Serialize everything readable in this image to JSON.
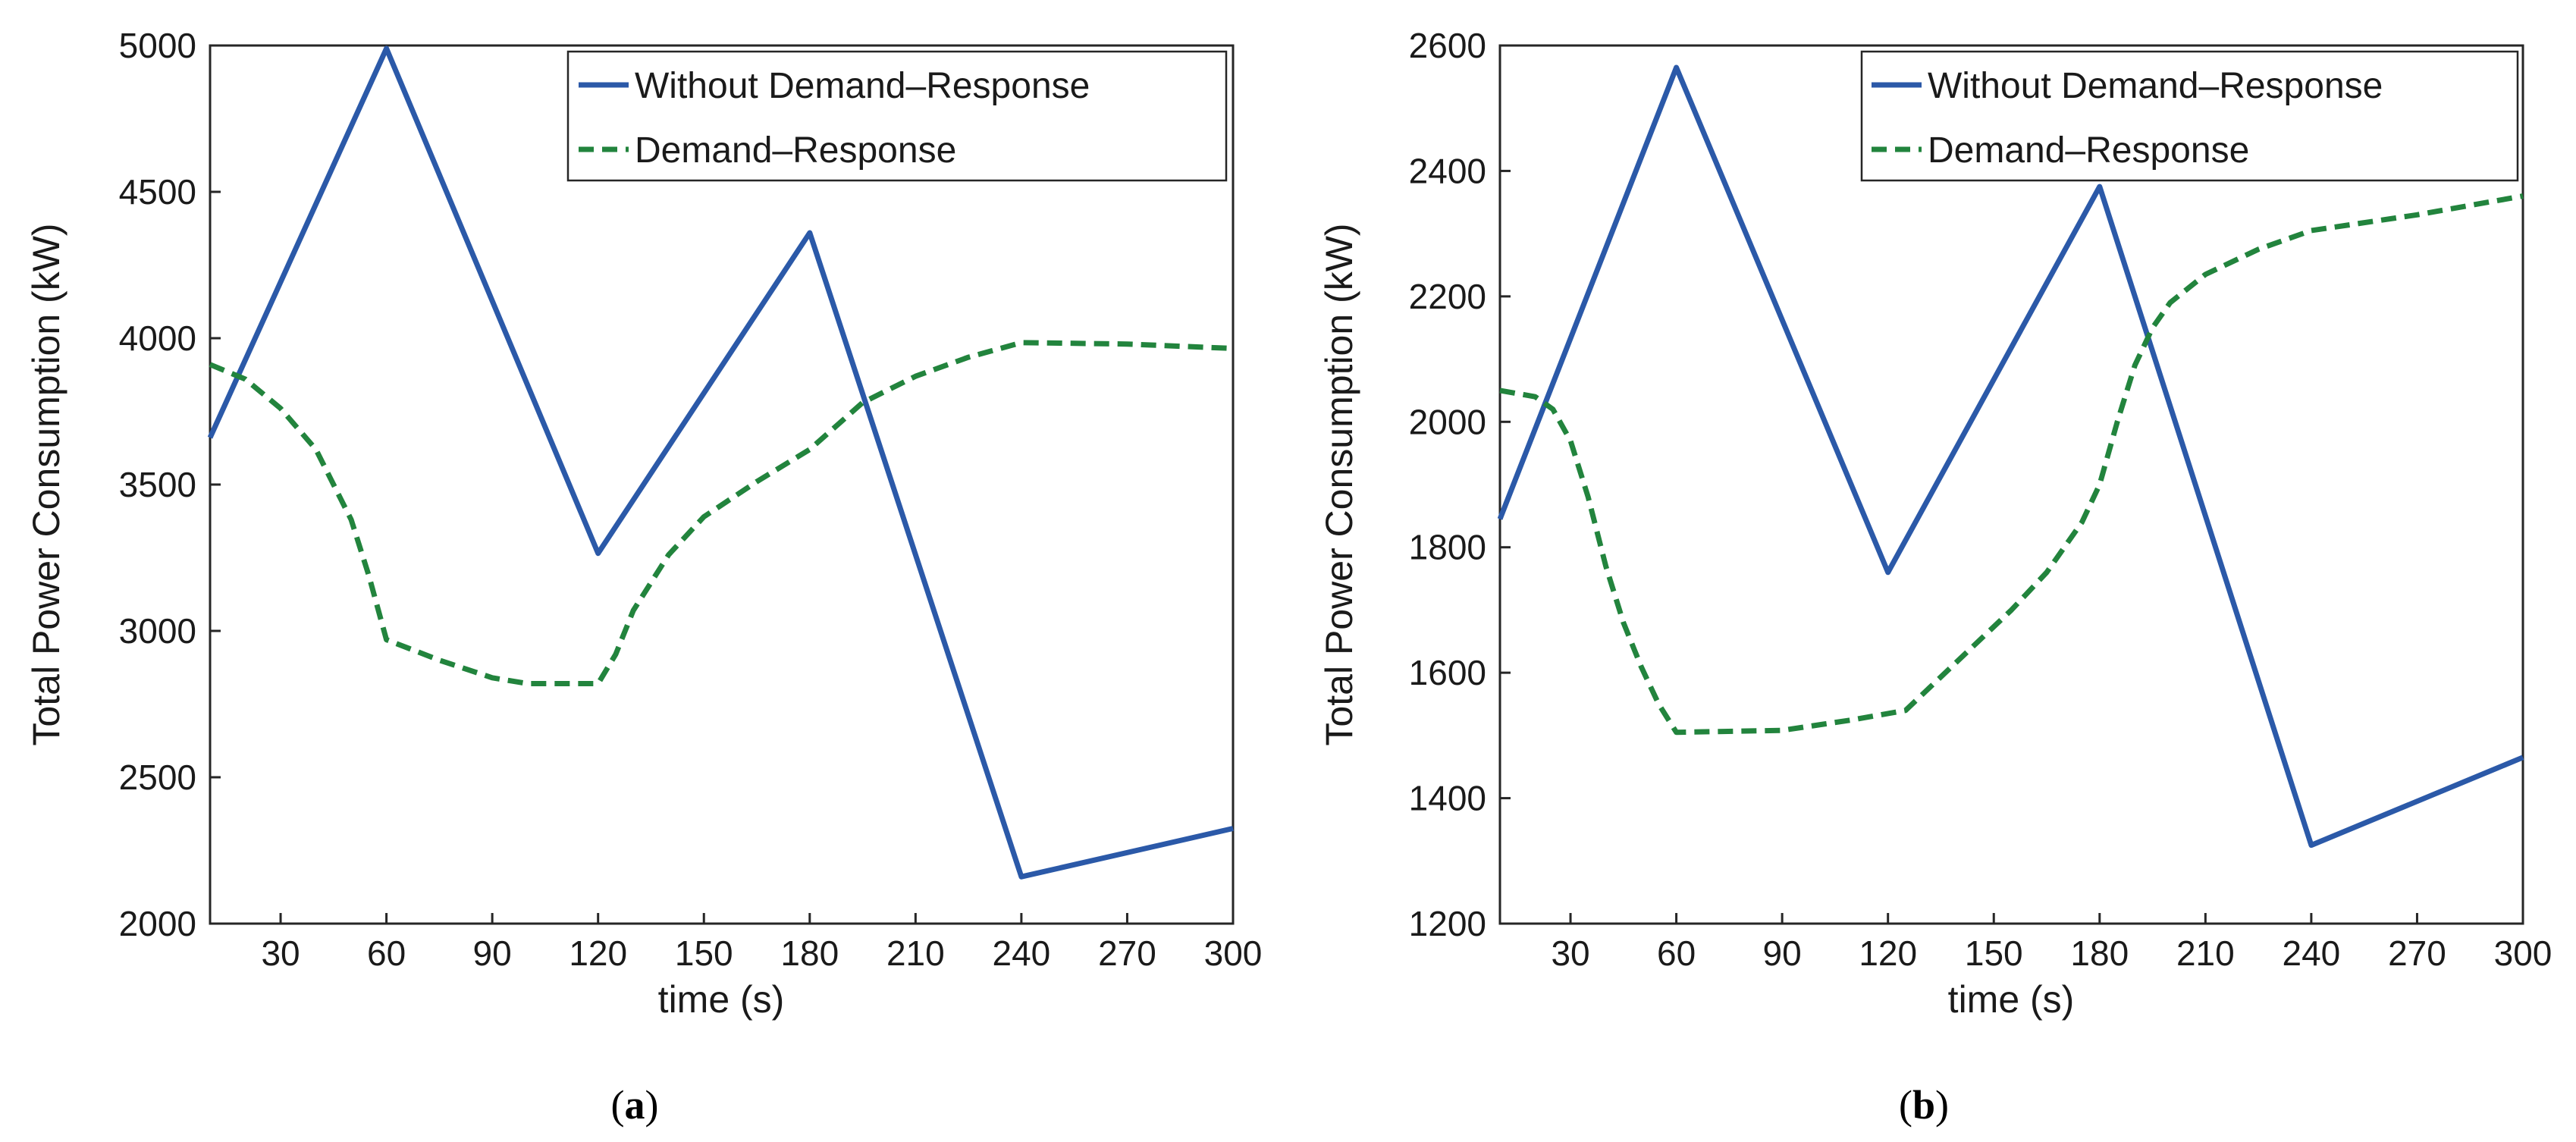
{
  "colors": {
    "blue": "#2b59a8",
    "green": "#22843d",
    "axis": "#262626"
  },
  "chart_data": [
    {
      "type": "line",
      "caption_letter": "a",
      "xlabel": "time (s)",
      "ylabel": "Total Power Consumption (kW)",
      "xlim": [
        10,
        300
      ],
      "ylim": [
        2000,
        5000
      ],
      "xticks": [
        30,
        60,
        90,
        120,
        150,
        180,
        210,
        240,
        270,
        300
      ],
      "yticks": [
        2000,
        2500,
        3000,
        3500,
        4000,
        4500,
        5000
      ],
      "legend": "top-right",
      "series": [
        {
          "name": "Without Demand–Response",
          "style": "solid",
          "color": "#2b59a8",
          "x": [
            10,
            60,
            120,
            180,
            240,
            300
          ],
          "y": [
            3660,
            4990,
            3265,
            4360,
            2160,
            2325
          ]
        },
        {
          "name": "Demand–Response",
          "style": "dashed",
          "color": "#22843d",
          "x": [
            10,
            20,
            30,
            40,
            50,
            55,
            60,
            75,
            90,
            100,
            120,
            125,
            130,
            140,
            150,
            165,
            180,
            195,
            210,
            225,
            240,
            270,
            300
          ],
          "y": [
            3910,
            3860,
            3760,
            3620,
            3380,
            3190,
            2970,
            2900,
            2840,
            2820,
            2820,
            2920,
            3070,
            3260,
            3390,
            3510,
            3620,
            3780,
            3870,
            3935,
            3985,
            3980,
            3965
          ]
        }
      ]
    },
    {
      "type": "line",
      "caption_letter": "b",
      "xlabel": "time (s)",
      "ylabel": "Total Power Consumption (kW)",
      "xlim": [
        10,
        300
      ],
      "ylim": [
        1200,
        2600
      ],
      "xticks": [
        30,
        60,
        90,
        120,
        150,
        180,
        210,
        240,
        270,
        300
      ],
      "yticks": [
        1200,
        1400,
        1600,
        1800,
        2000,
        2200,
        2400,
        2600
      ],
      "legend": "top-right",
      "series": [
        {
          "name": "Without Demand–Response",
          "style": "solid",
          "color": "#2b59a8",
          "x": [
            10,
            60,
            120,
            180,
            240,
            300
          ],
          "y": [
            1845,
            2565,
            1760,
            2375,
            1325,
            1465
          ]
        },
        {
          "name": "Demand–Response",
          "style": "dashed",
          "color": "#22843d",
          "x": [
            10,
            20,
            25,
            30,
            35,
            40,
            45,
            50,
            55,
            60,
            90,
            110,
            125,
            140,
            155,
            165,
            175,
            180,
            185,
            190,
            195,
            200,
            210,
            225,
            240,
            270,
            300
          ],
          "y": [
            2050,
            2040,
            2020,
            1970,
            1880,
            1770,
            1680,
            1610,
            1550,
            1505,
            1508,
            1525,
            1540,
            1620,
            1700,
            1760,
            1840,
            1900,
            2000,
            2090,
            2150,
            2190,
            2235,
            2275,
            2305,
            2330,
            2360
          ]
        }
      ]
    }
  ]
}
